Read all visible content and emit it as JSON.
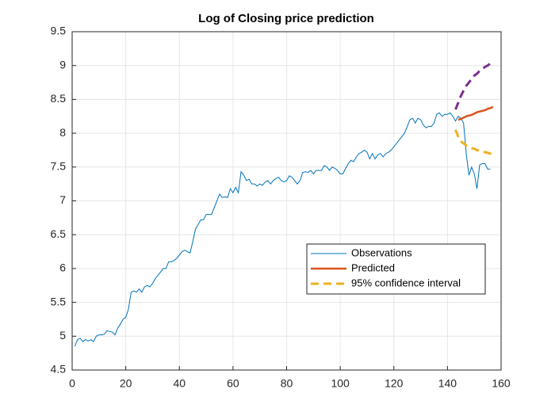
{
  "chart_data": {
    "type": "line",
    "title": "Log of Closing price prediction",
    "xlim": [
      0,
      160
    ],
    "xticks": [
      0,
      20,
      40,
      60,
      80,
      100,
      120,
      140,
      160
    ],
    "ylim": [
      4.5,
      9.5
    ],
    "yticks": [
      4.5,
      5,
      5.5,
      6,
      6.5,
      7,
      7.5,
      8,
      8.5,
      9,
      9.5
    ],
    "grid": true,
    "series": [
      {
        "name": "Observations",
        "color": "#0072bd",
        "line_width": 1,
        "line_style": "solid",
        "x": [
          1,
          2,
          3,
          4,
          5,
          6,
          7,
          8,
          9,
          10,
          11,
          12,
          13,
          14,
          15,
          16,
          17,
          18,
          19,
          20,
          21,
          22,
          23,
          24,
          25,
          26,
          27,
          28,
          29,
          30,
          31,
          32,
          33,
          34,
          35,
          36,
          37,
          38,
          39,
          40,
          41,
          42,
          43,
          44,
          45,
          46,
          47,
          48,
          49,
          50,
          51,
          52,
          53,
          54,
          55,
          56,
          57,
          58,
          59,
          60,
          61,
          62,
          63,
          64,
          65,
          66,
          67,
          68,
          69,
          70,
          71,
          72,
          73,
          74,
          75,
          76,
          77,
          78,
          79,
          80,
          81,
          82,
          83,
          84,
          85,
          86,
          87,
          88,
          89,
          90,
          91,
          92,
          93,
          94,
          95,
          96,
          97,
          98,
          99,
          100,
          101,
          102,
          103,
          104,
          105,
          106,
          107,
          108,
          109,
          110,
          111,
          112,
          113,
          114,
          115,
          116,
          117,
          118,
          119,
          120,
          121,
          122,
          123,
          124,
          125,
          126,
          127,
          128,
          129,
          130,
          131,
          132,
          133,
          134,
          135,
          136,
          137,
          138,
          139,
          140,
          141,
          142,
          143,
          144,
          145,
          146,
          147,
          148,
          149,
          150,
          151,
          152,
          153,
          154,
          155,
          156
        ],
        "values": [
          4.85,
          4.95,
          4.97,
          4.92,
          4.95,
          4.93,
          4.95,
          4.92,
          5.0,
          5.02,
          5.02,
          5.03,
          5.08,
          5.07,
          5.06,
          5.02,
          5.12,
          5.18,
          5.25,
          5.28,
          5.4,
          5.65,
          5.67,
          5.65,
          5.7,
          5.65,
          5.73,
          5.75,
          5.73,
          5.78,
          5.85,
          5.9,
          5.95,
          6.0,
          6.0,
          6.1,
          6.1,
          6.12,
          6.15,
          6.2,
          6.25,
          6.27,
          6.25,
          6.23,
          6.4,
          6.58,
          6.65,
          6.72,
          6.72,
          6.8,
          6.8,
          6.8,
          6.9,
          7.0,
          7.1,
          7.05,
          7.06,
          7.05,
          7.18,
          7.12,
          7.2,
          7.12,
          7.43,
          7.38,
          7.3,
          7.32,
          7.25,
          7.25,
          7.22,
          7.25,
          7.23,
          7.28,
          7.3,
          7.25,
          7.3,
          7.33,
          7.35,
          7.3,
          7.28,
          7.3,
          7.37,
          7.35,
          7.3,
          7.25,
          7.3,
          7.42,
          7.43,
          7.42,
          7.45,
          7.4,
          7.45,
          7.45,
          7.45,
          7.52,
          7.5,
          7.45,
          7.5,
          7.48,
          7.45,
          7.4,
          7.4,
          7.48,
          7.55,
          7.6,
          7.58,
          7.65,
          7.7,
          7.72,
          7.75,
          7.72,
          7.62,
          7.7,
          7.62,
          7.68,
          7.7,
          7.65,
          7.7,
          7.72,
          7.75,
          7.8,
          7.85,
          7.9,
          7.95,
          8.0,
          8.1,
          8.2,
          8.22,
          8.15,
          8.22,
          8.2,
          8.12,
          8.08,
          8.1,
          8.1,
          8.15,
          8.28,
          8.3,
          8.25,
          8.28,
          8.28,
          8.3,
          8.25,
          8.18,
          8.25,
          8.22,
          8.15,
          7.7,
          7.38,
          7.5,
          7.4,
          7.18,
          7.53,
          7.55,
          7.55,
          7.47,
          7.47
        ]
      },
      {
        "name": "Predicted",
        "color": "#d95319",
        "line_width": 2.5,
        "line_style": "solid",
        "x": [
          144,
          145,
          146,
          147,
          148,
          149,
          150,
          151,
          152,
          153,
          154,
          155,
          156,
          157
        ],
        "values": [
          8.2,
          8.21,
          8.23,
          8.25,
          8.26,
          8.27,
          8.29,
          8.31,
          8.32,
          8.33,
          8.34,
          8.36,
          8.37,
          8.39
        ]
      },
      {
        "name": "95% confidence interval",
        "color": "#edb120",
        "line_width": 3,
        "line_style": "dashed",
        "x": [
          143,
          144,
          145,
          146,
          147,
          148,
          149,
          150,
          151,
          152,
          153,
          154,
          155,
          156,
          157
        ],
        "values": [
          8.05,
          7.95,
          7.88,
          7.85,
          7.82,
          7.8,
          7.78,
          7.77,
          7.75,
          7.74,
          7.73,
          7.72,
          7.71,
          7.7,
          7.7
        ]
      },
      {
        "color": "#7e2f8e",
        "line_width": 3,
        "line_style": "dashed",
        "x": [
          143,
          144,
          145,
          146,
          147,
          148,
          149,
          150,
          151,
          152,
          153,
          154,
          155,
          156,
          157
        ],
        "values": [
          8.35,
          8.45,
          8.55,
          8.63,
          8.7,
          8.75,
          8.8,
          8.85,
          8.88,
          8.92,
          8.95,
          8.98,
          9.0,
          9.03,
          9.07
        ]
      }
    ]
  }
}
